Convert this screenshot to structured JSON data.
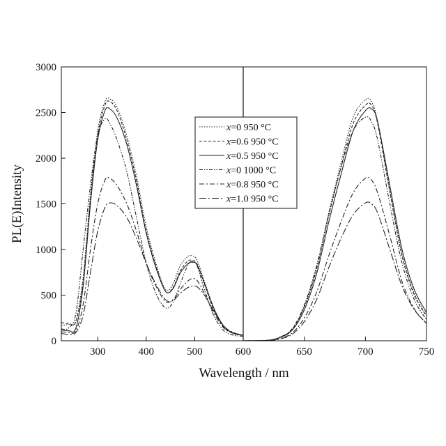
{
  "chart_data": {
    "type": "line",
    "title": "",
    "xlabel": "Wavelength / nm",
    "ylabel": "PL(E)Intensity",
    "ylim": [
      0,
      3000
    ],
    "y_ticks": [
      "0",
      "500",
      "1000",
      "1500",
      "2000",
      "2500",
      "3000"
    ],
    "y_tick_values": [
      0,
      500,
      1000,
      1500,
      2000,
      2500,
      3000
    ],
    "grid": false,
    "legend_position": "top-center",
    "panels": [
      {
        "name": "excitation",
        "xlim": [
          225,
          600
        ],
        "x_ticks": [
          "300",
          "400",
          "500",
          "600"
        ],
        "x_tick_values": [
          300,
          400,
          500,
          600
        ]
      },
      {
        "name": "emission",
        "xlim": [
          600,
          750
        ],
        "x_ticks": [
          "650",
          "700",
          "750"
        ],
        "x_tick_values": [
          650,
          700,
          750
        ]
      }
    ],
    "series": [
      {
        "name": "x=0 950 °C",
        "var": "x",
        "rest": "=0 950 °C",
        "dash": "1.5 2",
        "excitation": {
          "x": [
            225,
            240,
            255,
            270,
            285,
            300,
            315,
            325,
            340,
            360,
            380,
            400,
            420,
            440,
            455,
            470,
            485,
            495,
            505,
            520,
            540,
            560,
            580,
            600
          ],
          "y": [
            170,
            180,
            220,
            700,
            1600,
            2300,
            2620,
            2650,
            2560,
            2250,
            1800,
            1250,
            850,
            560,
            620,
            820,
            920,
            930,
            880,
            650,
            350,
            150,
            80,
            60
          ]
        },
        "emission": {
          "x": [
            600,
            620,
            630,
            640,
            650,
            660,
            670,
            680,
            690,
            700,
            705,
            710,
            720,
            730,
            740,
            750
          ],
          "y": [
            0,
            5,
            40,
            130,
            380,
            800,
            1400,
            1950,
            2450,
            2640,
            2620,
            2400,
            1650,
            950,
            520,
            280
          ]
        }
      },
      {
        "name": "x=0.6 950 °C",
        "var": "x",
        "rest": "=0.6 950 °C",
        "dash": "4 2.5",
        "excitation": {
          "x": [
            225,
            240,
            255,
            270,
            285,
            300,
            315,
            325,
            340,
            360,
            380,
            400,
            420,
            440,
            455,
            470,
            485,
            495,
            505,
            520,
            540,
            560,
            580,
            600
          ],
          "y": [
            200,
            190,
            210,
            650,
            1550,
            2250,
            2580,
            2620,
            2520,
            2200,
            1750,
            1200,
            820,
            540,
            580,
            760,
            870,
            880,
            840,
            620,
            330,
            150,
            80,
            60
          ]
        },
        "emission": {
          "x": [
            600,
            620,
            630,
            640,
            650,
            660,
            670,
            680,
            690,
            700,
            705,
            710,
            720,
            730,
            740,
            750
          ],
          "y": [
            0,
            5,
            38,
            125,
            370,
            780,
            1370,
            1900,
            2380,
            2580,
            2580,
            2380,
            1630,
            930,
            500,
            270
          ]
        }
      },
      {
        "name": "x=0.5 950 °C",
        "var": "x",
        "rest": "=0.5 950 °C",
        "dash": "",
        "excitation": {
          "x": [
            225,
            240,
            255,
            270,
            285,
            300,
            315,
            325,
            340,
            360,
            380,
            400,
            420,
            440,
            455,
            470,
            485,
            495,
            505,
            520,
            540,
            560,
            580,
            600
          ],
          "y": [
            120,
            110,
            140,
            600,
            1500,
            2200,
            2520,
            2540,
            2440,
            2150,
            1700,
            1180,
            800,
            540,
            570,
            740,
            840,
            860,
            830,
            630,
            350,
            160,
            85,
            60
          ]
        },
        "emission": {
          "x": [
            600,
            620,
            630,
            640,
            650,
            660,
            670,
            680,
            690,
            700,
            705,
            710,
            720,
            730,
            740,
            750
          ],
          "y": [
            0,
            5,
            35,
            115,
            340,
            730,
            1300,
            1820,
            2300,
            2520,
            2540,
            2400,
            1700,
            1000,
            560,
            310
          ]
        }
      },
      {
        "name": "x=0 1000 °C",
        "var": "x",
        "rest": "=0 1000 °C",
        "dash": "5 2 1.5 2 1.5 2",
        "excitation": {
          "x": [
            225,
            240,
            255,
            270,
            285,
            300,
            315,
            325,
            340,
            360,
            380,
            400,
            420,
            440,
            455,
            470,
            485,
            495,
            505,
            520,
            540,
            560,
            580,
            600
          ],
          "y": [
            130,
            140,
            300,
            1000,
            1700,
            2250,
            2430,
            2380,
            2200,
            1850,
            1350,
            850,
            520,
            360,
            420,
            620,
            820,
            870,
            820,
            560,
            270,
            110,
            60,
            50
          ]
        },
        "emission": {
          "x": [
            600,
            620,
            630,
            640,
            650,
            660,
            670,
            680,
            690,
            700,
            705,
            710,
            720,
            730,
            740,
            750
          ],
          "y": [
            0,
            5,
            40,
            130,
            390,
            820,
            1380,
            1900,
            2300,
            2450,
            2400,
            2200,
            1500,
            850,
            450,
            230
          ]
        }
      },
      {
        "name": "x=0.8 950 °C",
        "var": "x",
        "rest": "=0.8 950 °C",
        "dash": "7 3 2 3",
        "excitation": {
          "x": [
            225,
            240,
            255,
            270,
            285,
            300,
            315,
            325,
            340,
            360,
            380,
            400,
            420,
            440,
            455,
            470,
            485,
            495,
            505,
            520,
            540,
            560,
            580,
            600
          ],
          "y": [
            100,
            90,
            110,
            400,
            1000,
            1500,
            1760,
            1780,
            1700,
            1500,
            1200,
            850,
            600,
            430,
            450,
            560,
            650,
            680,
            660,
            520,
            300,
            140,
            80,
            60
          ]
        },
        "emission": {
          "x": [
            600,
            620,
            630,
            640,
            650,
            660,
            670,
            680,
            690,
            700,
            705,
            710,
            720,
            730,
            740,
            750
          ],
          "y": [
            0,
            3,
            25,
            85,
            250,
            530,
            930,
            1300,
            1620,
            1780,
            1760,
            1620,
            1150,
            650,
            350,
            190
          ]
        }
      },
      {
        "name": "x=1.0 950 °C",
        "var": "x",
        "rest": "=1.0 950 °C",
        "dash": "10 3 2 3",
        "excitation": {
          "x": [
            225,
            240,
            255,
            270,
            285,
            300,
            315,
            325,
            340,
            360,
            380,
            400,
            420,
            440,
            455,
            470,
            485,
            495,
            505,
            520,
            540,
            560,
            580,
            600
          ],
          "y": [
            80,
            70,
            90,
            280,
            750,
            1200,
            1460,
            1510,
            1480,
            1350,
            1120,
            850,
            620,
            450,
            440,
            520,
            580,
            600,
            590,
            500,
            320,
            160,
            90,
            60
          ]
        },
        "emission": {
          "x": [
            600,
            620,
            630,
            640,
            650,
            660,
            670,
            680,
            690,
            700,
            705,
            710,
            720,
            730,
            740,
            750
          ],
          "y": [
            0,
            3,
            20,
            70,
            210,
            450,
            800,
            1120,
            1380,
            1510,
            1500,
            1400,
            1000,
            600,
            340,
            190
          ]
        }
      }
    ]
  }
}
